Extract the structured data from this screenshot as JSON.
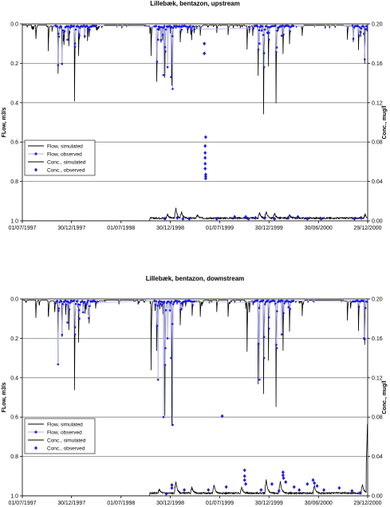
{
  "chart_data": [
    {
      "type": "line",
      "title": "Lillebæk, bentazon, upstream",
      "ylabel_left": "FLow, m3/s",
      "ylabel_right": "Conc., mug/l",
      "left_axis": {
        "min": 0.0,
        "max": 1.0,
        "inverted": true,
        "ticks": [
          "0.0",
          "0.2",
          "0.4",
          "0.6",
          "0.8",
          "1.0"
        ]
      },
      "right_axis": {
        "min": 0.0,
        "max": 0.2,
        "ticks": [
          "0.20",
          "0.16",
          "0.12",
          "0.08",
          "0.04",
          "0.00"
        ]
      },
      "x_ticks": [
        "01/07/1997",
        "30/12/1997",
        "01/07/1998",
        "30/12/1998",
        "01/07/1999",
        "30/12/1999",
        "30/06/2000",
        "29/12/2000"
      ],
      "grid": "horizontal",
      "legend": {
        "position": "lower-left",
        "entries": [
          "Flow, simulated",
          "Flow, observed",
          "Conc., simulated",
          "Conc., observed"
        ]
      },
      "flow_simulated_peaks": [
        {
          "date": "1997-08-20",
          "flow": 0.07
        },
        {
          "date": "1997-10-05",
          "flow": 0.06
        },
        {
          "date": "1997-11-10",
          "flow": 0.24
        },
        {
          "date": "1997-11-25",
          "flow": 0.13
        },
        {
          "date": "1997-12-20",
          "flow": 0.1
        },
        {
          "date": "1998-01-10",
          "flow": 0.38
        },
        {
          "date": "1998-01-25",
          "flow": 0.15
        },
        {
          "date": "1998-03-05",
          "flow": 0.05
        },
        {
          "date": "1998-10-20",
          "flow": 0.15
        },
        {
          "date": "1998-11-10",
          "flow": 0.2
        },
        {
          "date": "1998-12-10",
          "flow": 0.26
        },
        {
          "date": "1999-01-05",
          "flow": 0.3
        },
        {
          "date": "1999-02-05",
          "flow": 0.08
        },
        {
          "date": "1999-04-20",
          "flow": 0.05
        },
        {
          "date": "1999-06-20",
          "flow": 0.04
        },
        {
          "date": "1999-08-01",
          "flow": 0.05
        },
        {
          "date": "1999-10-10",
          "flow": 0.12
        },
        {
          "date": "1999-11-20",
          "flow": 0.25
        },
        {
          "date": "1999-12-10",
          "flow": 0.42
        },
        {
          "date": "1999-12-28",
          "flow": 0.2
        },
        {
          "date": "2000-01-25",
          "flow": 0.39
        },
        {
          "date": "2000-02-20",
          "flow": 0.14
        },
        {
          "date": "2000-03-15",
          "flow": 0.09
        },
        {
          "date": "2000-05-01",
          "flow": 0.05
        },
        {
          "date": "2000-10-15",
          "flow": 0.07
        },
        {
          "date": "2000-11-25",
          "flow": 0.12
        },
        {
          "date": "2000-12-18",
          "flow": 0.19
        }
      ],
      "flow_observed": [
        {
          "date": "1997-11-12",
          "flow": 0.05
        },
        {
          "date": "1997-12-15",
          "flow": 0.08
        },
        {
          "date": "1998-01-12",
          "flow": 0.1
        },
        {
          "date": "1998-01-28",
          "flow": 0.06
        },
        {
          "date": "1998-11-15",
          "flow": 0.08
        },
        {
          "date": "1998-12-05",
          "flow": 0.26
        },
        {
          "date": "1998-12-12",
          "flow": 0.14
        },
        {
          "date": "1998-12-20",
          "flow": 0.22
        },
        {
          "date": "1999-01-02",
          "flow": 0.27
        },
        {
          "date": "1999-01-08",
          "flow": 0.33
        },
        {
          "date": "1999-02-10",
          "flow": 0.03
        },
        {
          "date": "1999-11-25",
          "flow": 0.1
        },
        {
          "date": "1999-12-12",
          "flow": 0.22
        },
        {
          "date": "1999-12-30",
          "flow": 0.08
        },
        {
          "date": "2000-01-28",
          "flow": 0.12
        },
        {
          "date": "2000-02-15",
          "flow": 0.06
        },
        {
          "date": "2000-12-15",
          "flow": 0.05
        }
      ],
      "conc_simulated_peaks": [
        {
          "date": "1998-12-20",
          "conc": 0.004
        },
        {
          "date": "1999-01-20",
          "conc": 0.01
        },
        {
          "date": "1999-02-10",
          "conc": 0.006
        },
        {
          "date": "1999-04-10",
          "conc": 0.003
        },
        {
          "date": "1999-11-25",
          "conc": 0.006
        },
        {
          "date": "1999-12-20",
          "conc": 0.007
        },
        {
          "date": "2000-01-20",
          "conc": 0.005
        },
        {
          "date": "2000-03-15",
          "conc": 0.003
        },
        {
          "date": "2000-12-20",
          "conc": 0.004
        }
      ],
      "conc_observed": [
        {
          "date": "1999-05-05",
          "conc": 0.17
        },
        {
          "date": "1999-05-05",
          "conc": 0.18
        },
        {
          "date": "1999-05-10",
          "conc": 0.043
        },
        {
          "date": "1999-05-10",
          "conc": 0.045
        },
        {
          "date": "1999-05-10",
          "conc": 0.047
        },
        {
          "date": "1999-05-08",
          "conc": 0.053
        },
        {
          "date": "1999-05-08",
          "conc": 0.058
        },
        {
          "date": "1999-05-08",
          "conc": 0.064
        },
        {
          "date": "1999-05-08",
          "conc": 0.069
        },
        {
          "date": "1999-05-08",
          "conc": 0.076
        },
        {
          "date": "1999-05-10",
          "conc": 0.085
        },
        {
          "date": "1998-12-10",
          "conc": 0.002
        },
        {
          "date": "1999-01-25",
          "conc": 0.003
        },
        {
          "date": "1999-02-15",
          "conc": 0.002
        },
        {
          "date": "1999-03-10",
          "conc": 0.002
        },
        {
          "date": "1999-06-20",
          "conc": 0.002
        },
        {
          "date": "1999-08-25",
          "conc": 0.004
        },
        {
          "date": "1999-10-05",
          "conc": 0.004
        },
        {
          "date": "1999-10-15",
          "conc": 0.002
        },
        {
          "date": "1999-11-10",
          "conc": 0.003
        },
        {
          "date": "1999-12-15",
          "conc": 0.003
        },
        {
          "date": "2000-01-20",
          "conc": 0.002
        },
        {
          "date": "2000-03-10",
          "conc": 0.003
        },
        {
          "date": "2000-04-15",
          "conc": 0.004
        },
        {
          "date": "2000-05-20",
          "conc": 0.002
        },
        {
          "date": "2000-07-10",
          "conc": 0.002
        },
        {
          "date": "2000-11-10",
          "conc": 0.002
        },
        {
          "date": "2000-12-05",
          "conc": 0.003
        }
      ]
    },
    {
      "type": "line",
      "title": "Lillebæk, bentazon, downstream",
      "ylabel_left": "FLow, m3/s",
      "ylabel_right": "Conc., mug/l",
      "left_axis": {
        "min": 0.0,
        "max": 1.0,
        "inverted": true,
        "ticks": [
          "0.0",
          "0.2",
          "0.4",
          "0.6",
          "0.8",
          "1.0"
        ]
      },
      "right_axis": {
        "min": 0.0,
        "max": 0.2,
        "ticks": [
          "0.20",
          "0.16",
          "0.12",
          "0.08",
          "0.04",
          "0.00"
        ]
      },
      "x_ticks": [
        "01/07/1997",
        "30/12/1997",
        "01/07/1998",
        "30/12/1998",
        "01/07/1999",
        "30/12/1999",
        "30/06/2000",
        "29/12/2000"
      ],
      "grid": "horizontal",
      "legend": {
        "position": "lower-left",
        "entries": [
          "Flow, simulated",
          "Flow, observed",
          "Conc., simulated",
          "Conc., observed"
        ]
      },
      "flow_simulated_peaks": [
        {
          "date": "1997-08-20",
          "flow": 0.09
        },
        {
          "date": "1997-10-05",
          "flow": 0.08
        },
        {
          "date": "1997-11-10",
          "flow": 0.31
        },
        {
          "date": "1997-11-25",
          "flow": 0.18
        },
        {
          "date": "1997-12-20",
          "flow": 0.14
        },
        {
          "date": "1998-01-10",
          "flow": 0.45
        },
        {
          "date": "1998-01-25",
          "flow": 0.2
        },
        {
          "date": "1998-03-05",
          "flow": 0.07
        },
        {
          "date": "1998-10-20",
          "flow": 0.35
        },
        {
          "date": "1998-11-10",
          "flow": 0.25
        },
        {
          "date": "1998-12-10",
          "flow": 0.58
        },
        {
          "date": "1999-01-05",
          "flow": 0.63
        },
        {
          "date": "1999-02-05",
          "flow": 0.12
        },
        {
          "date": "1999-04-20",
          "flow": 0.08
        },
        {
          "date": "1999-06-20",
          "flow": 0.06
        },
        {
          "date": "1999-08-01",
          "flow": 0.08
        },
        {
          "date": "1999-10-10",
          "flow": 0.2
        },
        {
          "date": "1999-11-20",
          "flow": 0.42
        },
        {
          "date": "1999-12-10",
          "flow": 0.47
        },
        {
          "date": "1999-12-28",
          "flow": 0.3
        },
        {
          "date": "2000-01-25",
          "flow": 0.47
        },
        {
          "date": "2000-02-20",
          "flow": 0.25
        },
        {
          "date": "2000-03-15",
          "flow": 0.15
        },
        {
          "date": "2000-05-01",
          "flow": 0.08
        },
        {
          "date": "2000-10-15",
          "flow": 0.1
        },
        {
          "date": "2000-11-25",
          "flow": 0.15
        },
        {
          "date": "2000-12-18",
          "flow": 0.22
        }
      ],
      "flow_observed": [
        {
          "date": "1997-11-12",
          "flow": 0.06
        },
        {
          "date": "1997-12-15",
          "flow": 0.12
        },
        {
          "date": "1998-01-12",
          "flow": 0.18
        },
        {
          "date": "1998-01-28",
          "flow": 0.1
        },
        {
          "date": "1998-11-15",
          "flow": 0.41
        },
        {
          "date": "1998-12-05",
          "flow": 0.6
        },
        {
          "date": "1998-12-12",
          "flow": 0.25
        },
        {
          "date": "1998-12-20",
          "flow": 0.2
        },
        {
          "date": "1999-01-02",
          "flow": 0.3
        },
        {
          "date": "1999-01-08",
          "flow": 0.64
        },
        {
          "date": "1999-02-10",
          "flow": 0.05
        },
        {
          "date": "1999-11-25",
          "flow": 0.41
        },
        {
          "date": "1999-12-12",
          "flow": 0.3
        },
        {
          "date": "1999-12-30",
          "flow": 0.15
        },
        {
          "date": "2000-01-28",
          "flow": 0.25
        },
        {
          "date": "2000-02-15",
          "flow": 0.18
        },
        {
          "date": "2000-12-15",
          "flow": 0.2
        }
      ],
      "conc_simulated_peaks": [
        {
          "date": "1998-11-20",
          "conc": 0.004
        },
        {
          "date": "1999-01-20",
          "conc": 0.012
        },
        {
          "date": "1999-03-20",
          "conc": 0.006
        },
        {
          "date": "1999-06-10",
          "conc": 0.008
        },
        {
          "date": "1999-09-20",
          "conc": 0.006
        },
        {
          "date": "1999-12-20",
          "conc": 0.014
        },
        {
          "date": "2000-02-10",
          "conc": 0.012
        },
        {
          "date": "2000-06-15",
          "conc": 0.008
        },
        {
          "date": "2000-12-10",
          "conc": 0.009
        },
        {
          "date": "2000-12-28",
          "conc": 0.07
        }
      ],
      "conc_observed": [
        {
          "date": "1999-01-05",
          "conc": 0.011
        },
        {
          "date": "1999-01-05",
          "conc": 0.008
        },
        {
          "date": "1999-02-20",
          "conc": 0.006
        },
        {
          "date": "1999-05-20",
          "conc": 0.006
        },
        {
          "date": "1999-07-10",
          "conc": 0.081
        },
        {
          "date": "1999-07-25",
          "conc": 0.009
        },
        {
          "date": "1999-10-01",
          "conc": 0.026
        },
        {
          "date": "1999-10-01",
          "conc": 0.02
        },
        {
          "date": "1999-10-01",
          "conc": 0.016
        },
        {
          "date": "1999-10-05",
          "conc": 0.012
        },
        {
          "date": "1999-12-01",
          "conc": 0.006
        },
        {
          "date": "2000-01-10",
          "conc": 0.012
        },
        {
          "date": "2000-02-05",
          "conc": 0.005
        },
        {
          "date": "2000-02-20",
          "conc": 0.024
        },
        {
          "date": "2000-02-20",
          "conc": 0.021
        },
        {
          "date": "2000-02-22",
          "conc": 0.018
        },
        {
          "date": "2000-03-01",
          "conc": 0.014
        },
        {
          "date": "2000-04-01",
          "conc": 0.009
        },
        {
          "date": "2000-04-20",
          "conc": 0.006
        },
        {
          "date": "2000-05-20",
          "conc": 0.012
        },
        {
          "date": "2000-06-10",
          "conc": 0.016
        },
        {
          "date": "2000-06-15",
          "conc": 0.013
        },
        {
          "date": "2000-06-25",
          "conc": 0.01
        },
        {
          "date": "2000-07-20",
          "conc": 0.006
        },
        {
          "date": "2000-09-15",
          "conc": 0.008
        },
        {
          "date": "2000-11-01",
          "conc": 0.005
        },
        {
          "date": "2000-12-01",
          "conc": 0.003
        },
        {
          "date": "1998-12-15",
          "conc": 0.002
        }
      ]
    }
  ],
  "colors": {
    "flow_simulated": "#000000",
    "flow_observed": "#1c1ce8",
    "flow_observed_line": "#b0b0ee",
    "conc_simulated": "#000000",
    "conc_observed": "#1c1ce8",
    "grid": "#808080"
  }
}
